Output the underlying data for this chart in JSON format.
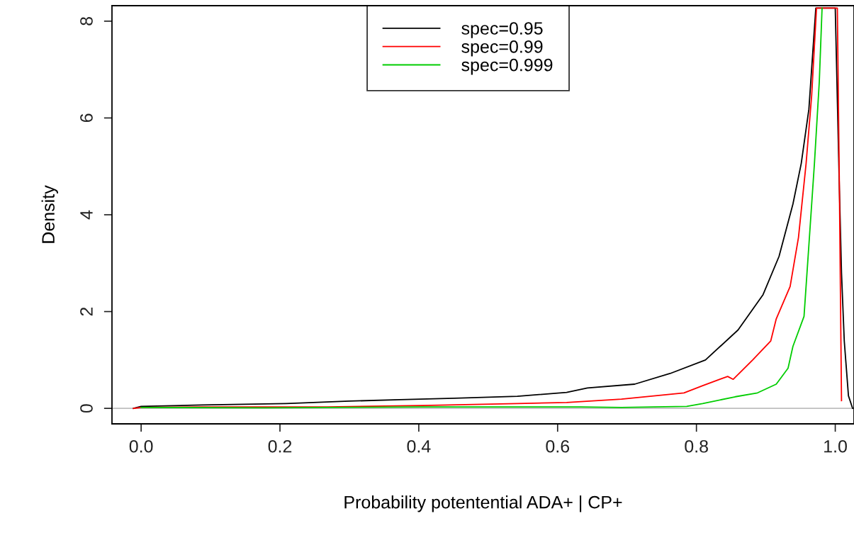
{
  "chart_data": {
    "type": "line",
    "xlabel": "Probability potentential ADA+ | CP+",
    "ylabel": "Density",
    "xlim": [
      -0.042,
      1.027
    ],
    "ylim": [
      -0.32,
      8.32
    ],
    "xticks": [
      {
        "value": 0,
        "label": "0.0"
      },
      0.2,
      0.4,
      0.6,
      0.8,
      {
        "value": 1,
        "label": "1.0"
      }
    ],
    "yticks": [
      0,
      2,
      4,
      6,
      8
    ],
    "grid": false,
    "legend": "top",
    "ref_lines": [
      {
        "axis": "y",
        "value": 0,
        "color": "#bebebe"
      }
    ],
    "series": [
      {
        "name": "spec=0.95",
        "color": "#000000",
        "x": [
          -0.011,
          0,
          0.087,
          0.209,
          0.3,
          0.373,
          0.451,
          0.542,
          0.613,
          0.643,
          0.711,
          0.762,
          0.813,
          0.86,
          0.896,
          0.919,
          0.939,
          0.951,
          0.962,
          0.972,
          1.0,
          1.006,
          1.009,
          1.013,
          1.019,
          1.025
        ],
        "values": [
          0,
          0.04,
          0.07,
          0.1,
          0.15,
          0.18,
          0.21,
          0.25,
          0.33,
          0.42,
          0.5,
          0.72,
          1.0,
          1.62,
          2.35,
          3.14,
          4.22,
          5.06,
          6.18,
          8.27,
          8.27,
          4.5,
          2.8,
          1.39,
          0.26,
          0
        ]
      },
      {
        "name": "spec=0.99",
        "color": "#ff0000",
        "x": [
          -0.011,
          0,
          0.087,
          0.268,
          0.405,
          0.542,
          0.613,
          0.692,
          0.782,
          0.809,
          0.845,
          0.853,
          0.881,
          0.907,
          0.915,
          0.935,
          0.947,
          0.958,
          0.966,
          0.973,
          1.003,
          1.006,
          1.009
        ],
        "values": [
          0,
          0.02,
          0.03,
          0.03,
          0.06,
          0.1,
          0.12,
          0.19,
          0.32,
          0.47,
          0.66,
          0.6,
          1.0,
          1.39,
          1.85,
          2.52,
          3.53,
          5.06,
          6.46,
          8.27,
          8.27,
          4.5,
          0.16
        ]
      },
      {
        "name": "spec=0.999",
        "color": "#00cd00",
        "x": [
          0,
          0.178,
          0.405,
          0.633,
          0.692,
          0.786,
          0.809,
          0.856,
          0.888,
          0.915,
          0.932,
          0.939,
          0.955,
          0.962,
          0.97,
          0.977,
          0.981
        ],
        "values": [
          0.02,
          0.01,
          0.03,
          0.03,
          0.02,
          0.04,
          0.1,
          0.24,
          0.32,
          0.5,
          0.83,
          1.28,
          1.9,
          3.37,
          5.06,
          6.75,
          8.27
        ]
      }
    ]
  }
}
